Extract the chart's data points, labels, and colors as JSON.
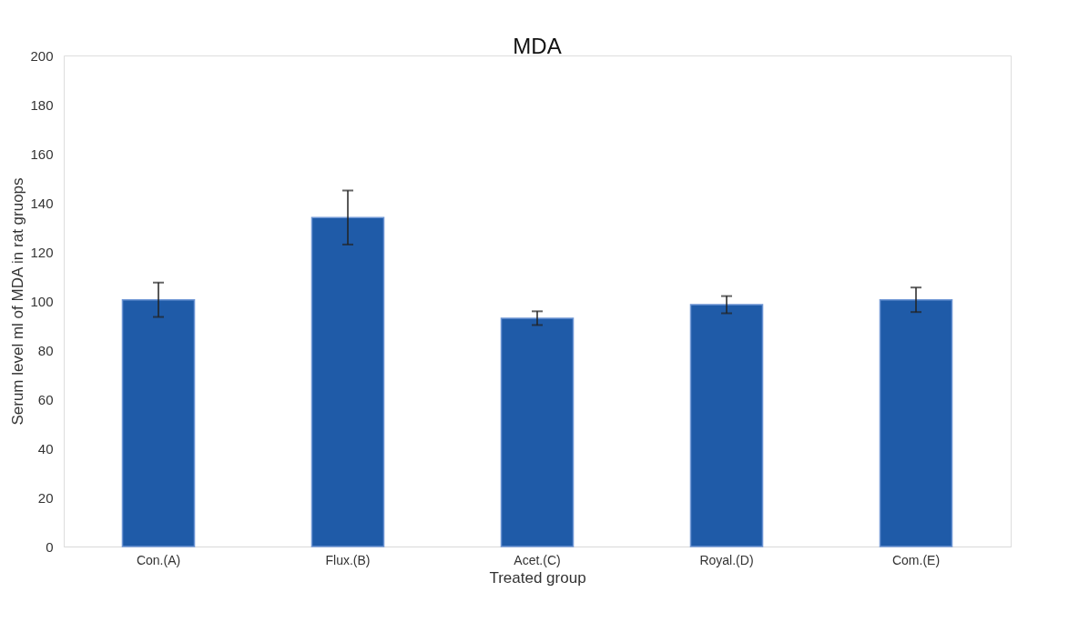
{
  "chart_data": {
    "type": "bar",
    "title": "MDA",
    "xlabel": "Treated group",
    "ylabel": "Serum level  ml of MDA in rat gruops",
    "categories": [
      "Con.(A)",
      "Flux.(B)",
      "Acet.(C)",
      "Royal.(D)",
      "Com.(E)"
    ],
    "values": [
      100.5,
      134,
      93,
      98.5,
      100.5
    ],
    "errors": [
      7,
      11,
      2.8,
      3.5,
      5
    ],
    "color": "#1f5ba8",
    "ylim": [
      0,
      200
    ],
    "yticks": [
      0,
      20,
      40,
      60,
      80,
      100,
      120,
      140,
      160,
      180,
      200
    ],
    "grid": false
  }
}
